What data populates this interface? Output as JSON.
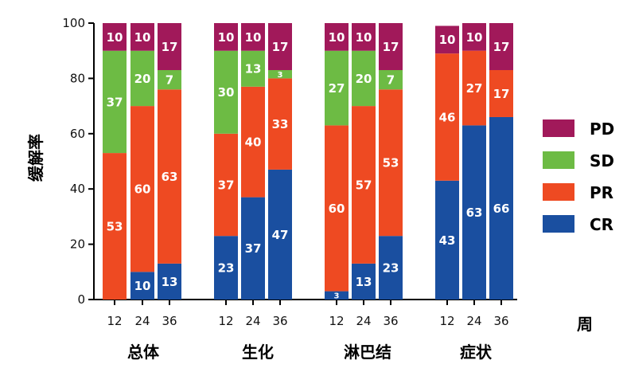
{
  "chart_data": {
    "type": "bar",
    "stacked": true,
    "ylabel": "缓解率",
    "xlabel": "周",
    "ylim": [
      0,
      100
    ],
    "yticks": [
      0,
      20,
      40,
      60,
      80,
      100
    ],
    "legend_position": "right",
    "series_order": [
      "CR",
      "PR",
      "SD",
      "PD"
    ],
    "legend_order": [
      "PD",
      "SD",
      "PR",
      "CR"
    ],
    "colors": {
      "CR": "#1a4fa0",
      "PR": "#ee4a22",
      "SD": "#6dbb44",
      "PD": "#a1195a"
    },
    "groups": [
      {
        "name": "总体",
        "bars": [
          {
            "week": "12",
            "CR": 0,
            "PR": 53,
            "SD": 37,
            "PD": 10
          },
          {
            "week": "24",
            "CR": 10,
            "PR": 60,
            "SD": 20,
            "PD": 10
          },
          {
            "week": "36",
            "CR": 13,
            "PR": 63,
            "SD": 7,
            "PD": 17
          }
        ]
      },
      {
        "name": "生化",
        "bars": [
          {
            "week": "12",
            "CR": 23,
            "PR": 37,
            "SD": 30,
            "PD": 10
          },
          {
            "week": "24",
            "CR": 37,
            "PR": 40,
            "SD": 13,
            "PD": 10
          },
          {
            "week": "36",
            "CR": 47,
            "PR": 33,
            "SD": 3,
            "PD": 17
          }
        ]
      },
      {
        "name": "淋巴结",
        "bars": [
          {
            "week": "12",
            "CR": 3,
            "PR": 60,
            "SD": 27,
            "PD": 10
          },
          {
            "week": "24",
            "CR": 13,
            "PR": 57,
            "SD": 20,
            "PD": 10
          },
          {
            "week": "36",
            "CR": 23,
            "PR": 53,
            "SD": 7,
            "PD": 17
          }
        ]
      },
      {
        "name": "症状",
        "bars": [
          {
            "week": "12",
            "CR": 43,
            "PR": 46,
            "SD": 0,
            "PD": 10
          },
          {
            "week": "24",
            "CR": 63,
            "PR": 27,
            "SD": 0,
            "PD": 10
          },
          {
            "week": "36",
            "CR": 66,
            "PR": 17,
            "SD": 0,
            "PD": 17
          }
        ]
      }
    ]
  }
}
